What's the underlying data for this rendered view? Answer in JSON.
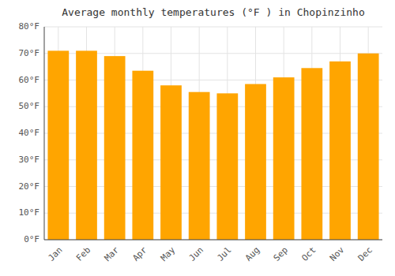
{
  "chart_data": {
    "type": "bar",
    "title": "Average monthly temperatures (°F ) in Chopinzinho",
    "categories": [
      "Jan",
      "Feb",
      "Mar",
      "Apr",
      "May",
      "Jun",
      "Jul",
      "Aug",
      "Sep",
      "Oct",
      "Nov",
      "Dec"
    ],
    "values": [
      71,
      71,
      69,
      63.5,
      58,
      55.5,
      55,
      58.5,
      61,
      64.5,
      67,
      70
    ],
    "color": "#FFA500",
    "ylim": [
      0,
      80
    ],
    "yticks": [
      {
        "value": 0,
        "label": "0°F"
      },
      {
        "value": 10,
        "label": "10°F"
      },
      {
        "value": 20,
        "label": "20°F"
      },
      {
        "value": 30,
        "label": "30°F"
      },
      {
        "value": 40,
        "label": "40°F"
      },
      {
        "value": 50,
        "label": "50°F"
      },
      {
        "value": 60,
        "label": "60°F"
      },
      {
        "value": 70,
        "label": "70°F"
      },
      {
        "value": 80,
        "label": "80°F"
      }
    ],
    "grid": true
  }
}
